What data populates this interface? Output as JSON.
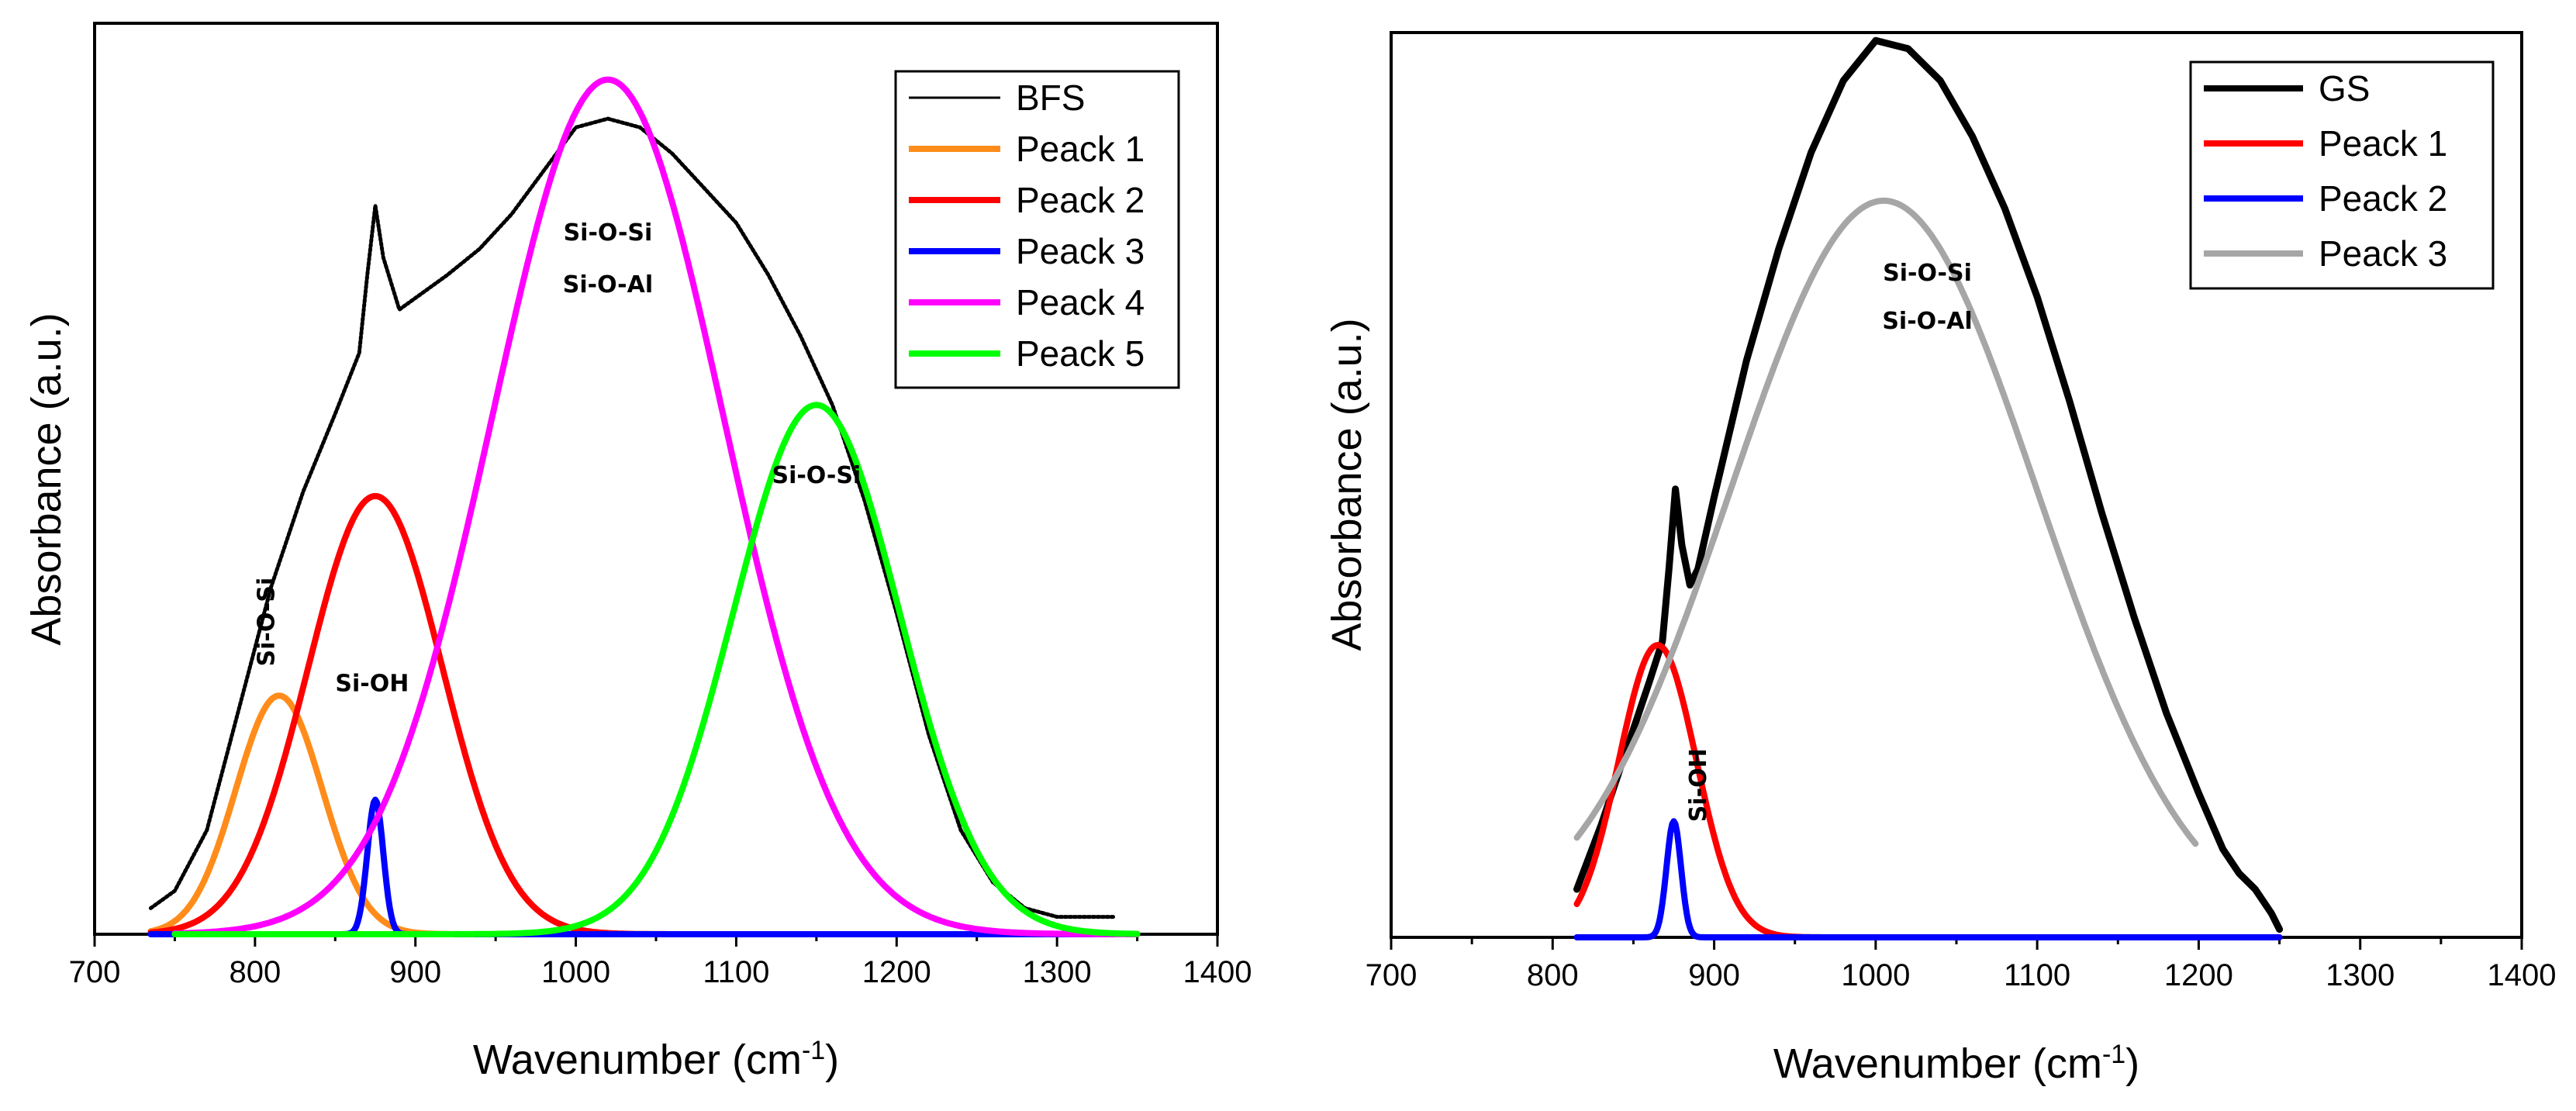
{
  "chart_data": [
    {
      "type": "line",
      "panel": "left",
      "title": "",
      "xlabel": "Wavenumber (cm",
      "xlabel_sup": "-1",
      "xlabel_close": ")",
      "ylabel": "Absorbance (a.u.)",
      "xlim": [
        700,
        1400
      ],
      "ylim": [
        0,
        1.05
      ],
      "x_ticks": [
        700,
        800,
        900,
        1000,
        1100,
        1200,
        1300,
        1400
      ],
      "x_tick_labels": [
        "700",
        "800",
        "900",
        "1000",
        "1100",
        "1200",
        "1300",
        "1400"
      ],
      "y_ticks_visible": false,
      "legend_position": "top-right",
      "series": [
        {
          "name": "BFS",
          "color": "#000000",
          "style": "dotted",
          "x": [
            735,
            750,
            770,
            790,
            810,
            830,
            850,
            865,
            870,
            875,
            880,
            890,
            905,
            920,
            940,
            960,
            980,
            1000,
            1020,
            1040,
            1060,
            1080,
            1100,
            1120,
            1140,
            1160,
            1180,
            1200,
            1220,
            1240,
            1260,
            1280,
            1300,
            1320,
            1335
          ],
          "y": [
            0.03,
            0.05,
            0.12,
            0.26,
            0.4,
            0.51,
            0.6,
            0.67,
            0.76,
            0.84,
            0.78,
            0.72,
            0.74,
            0.76,
            0.79,
            0.83,
            0.88,
            0.93,
            0.94,
            0.93,
            0.9,
            0.86,
            0.82,
            0.76,
            0.69,
            0.61,
            0.5,
            0.37,
            0.23,
            0.12,
            0.06,
            0.03,
            0.02,
            0.02,
            0.02
          ]
        },
        {
          "name": "Peack 1",
          "color": "#ff8c1a",
          "center": 815,
          "amplitude": 0.275,
          "width": 27,
          "x_range": [
            735,
            1335
          ]
        },
        {
          "name": "Peack 2",
          "color": "#ff0000",
          "center": 875,
          "amplitude": 0.505,
          "width": 42,
          "x_range": [
            735,
            1335
          ]
        },
        {
          "name": "Peack 3",
          "color": "#0000ff",
          "center": 875,
          "amplitude": 0.155,
          "width": 5,
          "x_range": [
            735,
            1335
          ]
        },
        {
          "name": "Peack 4",
          "color": "#ff00ff",
          "center": 1020,
          "amplitude": 0.985,
          "width": 72,
          "x_range": [
            750,
            1350
          ]
        },
        {
          "name": "Peack 5",
          "color": "#00ff00",
          "center": 1150,
          "amplitude": 0.61,
          "width": 52,
          "x_range": [
            750,
            1350
          ]
        }
      ],
      "annotations": [
        {
          "text": "Si-O-Si",
          "x": 1020,
          "y": 0.8
        },
        {
          "text": "Si-O-Al",
          "x": 1020,
          "y": 0.74
        },
        {
          "text": "Si-O-Si",
          "x": 1150,
          "y": 0.52
        },
        {
          "text": "Si-OH",
          "x": 873,
          "y": 0.28
        },
        {
          "text": "Si-O-Si",
          "x": 812,
          "y": 0.36,
          "rotated": true
        }
      ]
    },
    {
      "type": "line",
      "panel": "right",
      "title": "",
      "xlabel": "Wavenumber (cm",
      "xlabel_sup": "-1",
      "xlabel_close": ")",
      "ylabel": "Absorbance (a.u.)",
      "xlim": [
        700,
        1400
      ],
      "ylim": [
        0,
        1.13
      ],
      "x_ticks": [
        700,
        800,
        900,
        1000,
        1100,
        1200,
        1300,
        1400
      ],
      "x_tick_labels": [
        "700",
        "800",
        "900",
        "1000",
        "1100",
        "1200",
        "1300",
        "1400"
      ],
      "y_ticks_visible": false,
      "legend_position": "top-right",
      "series": [
        {
          "name": "GS",
          "color": "#000000",
          "style": "solid",
          "x": [
            815,
            830,
            845,
            860,
            868,
            872,
            876,
            880,
            885,
            890,
            900,
            920,
            940,
            960,
            980,
            1000,
            1020,
            1040,
            1060,
            1080,
            1100,
            1120,
            1140,
            1160,
            1180,
            1200,
            1215,
            1225,
            1235,
            1245,
            1250
          ],
          "y": [
            0.06,
            0.14,
            0.23,
            0.32,
            0.37,
            0.46,
            0.56,
            0.49,
            0.44,
            0.46,
            0.55,
            0.72,
            0.86,
            0.98,
            1.07,
            1.12,
            1.11,
            1.07,
            1.0,
            0.91,
            0.8,
            0.67,
            0.53,
            0.4,
            0.28,
            0.18,
            0.11,
            0.08,
            0.06,
            0.03,
            0.01
          ]
        },
        {
          "name": "Peack 1",
          "color": "#ff0000",
          "center": 865,
          "amplitude": 0.365,
          "width": 24,
          "x_range": [
            815,
            1250
          ]
        },
        {
          "name": "Peack 2",
          "color": "#0000ff",
          "center": 875,
          "amplitude": 0.145,
          "width": 4.5,
          "x_range": [
            815,
            1250
          ]
        },
        {
          "name": "Peack 3",
          "color": "#a6a6a6",
          "center": 1005,
          "amplitude": 0.92,
          "width": 95,
          "x_range": [
            815,
            1198
          ]
        }
      ],
      "annotations": [
        {
          "text": "Si-O-Si",
          "x": 1032,
          "y": 0.82
        },
        {
          "text": "Si-O-Al",
          "x": 1032,
          "y": 0.76
        },
        {
          "text": "Si-OH",
          "x": 895,
          "y": 0.19,
          "rotated": true
        }
      ]
    }
  ]
}
